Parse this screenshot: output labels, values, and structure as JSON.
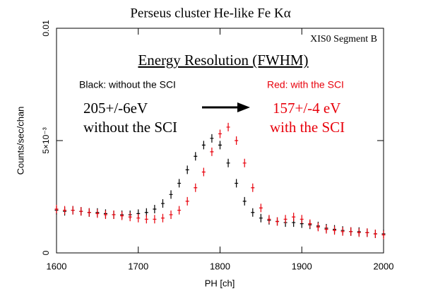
{
  "chart_data": {
    "type": "scatter",
    "title": "Perseus cluster He-like Fe Kα",
    "x_label": "PH [ch]",
    "y_label": "Counts/sec/chan",
    "x": [
      1600,
      1610,
      1620,
      1630,
      1640,
      1650,
      1660,
      1670,
      1680,
      1690,
      1700,
      1710,
      1720,
      1730,
      1740,
      1750,
      1760,
      1770,
      1780,
      1790,
      1800,
      1810,
      1820,
      1830,
      1840,
      1850,
      1860,
      1870,
      1880,
      1890,
      1900,
      1910,
      1920,
      1930,
      1940,
      1950,
      1960,
      1970,
      1980,
      1990,
      2000
    ],
    "series": [
      {
        "name": "Black: without the SCI",
        "color": "#000000",
        "values": [
          0.0019,
          0.00185,
          0.0019,
          0.00185,
          0.0018,
          0.0018,
          0.00175,
          0.0017,
          0.0017,
          0.0017,
          0.00175,
          0.0018,
          0.00195,
          0.0022,
          0.0026,
          0.0031,
          0.0037,
          0.0043,
          0.0048,
          0.0051,
          0.0048,
          0.004,
          0.0031,
          0.0023,
          0.0018,
          0.00155,
          0.00145,
          0.0014,
          0.00135,
          0.00135,
          0.0013,
          0.00125,
          0.0012,
          0.0011,
          0.00105,
          0.001,
          0.00095,
          0.00095,
          0.0009,
          0.00085,
          0.00085
        ]
      },
      {
        "name": "Red: with the SCI",
        "color": "#e8000b",
        "values": [
          0.00195,
          0.0019,
          0.0019,
          0.00185,
          0.0018,
          0.00175,
          0.0017,
          0.0017,
          0.00165,
          0.0016,
          0.00155,
          0.0015,
          0.0015,
          0.00155,
          0.0017,
          0.0019,
          0.0023,
          0.0029,
          0.0036,
          0.0045,
          0.0053,
          0.0056,
          0.005,
          0.004,
          0.0029,
          0.002,
          0.0015,
          0.0014,
          0.0015,
          0.0016,
          0.0015,
          0.0013,
          0.00115,
          0.00105,
          0.001,
          0.00095,
          0.00095,
          0.0009,
          0.0009,
          0.00085,
          0.0008
        ]
      }
    ],
    "xlim": [
      1600,
      2000
    ],
    "xticks": [
      1600,
      1700,
      1800,
      1900,
      2000
    ],
    "ylim": [
      0,
      0.01
    ],
    "yticks": [
      0,
      {
        "value": 0.005,
        "label": "5×10⁻³"
      },
      0.01
    ],
    "annotations": {
      "panel": "XIS0 Segment B",
      "heading": "Energy Resolution (FWHM)",
      "black_value": "205+/-6eV",
      "black_text": "without the SCI",
      "red_value": "157+/-4 eV",
      "red_text": "with the SCI"
    }
  }
}
